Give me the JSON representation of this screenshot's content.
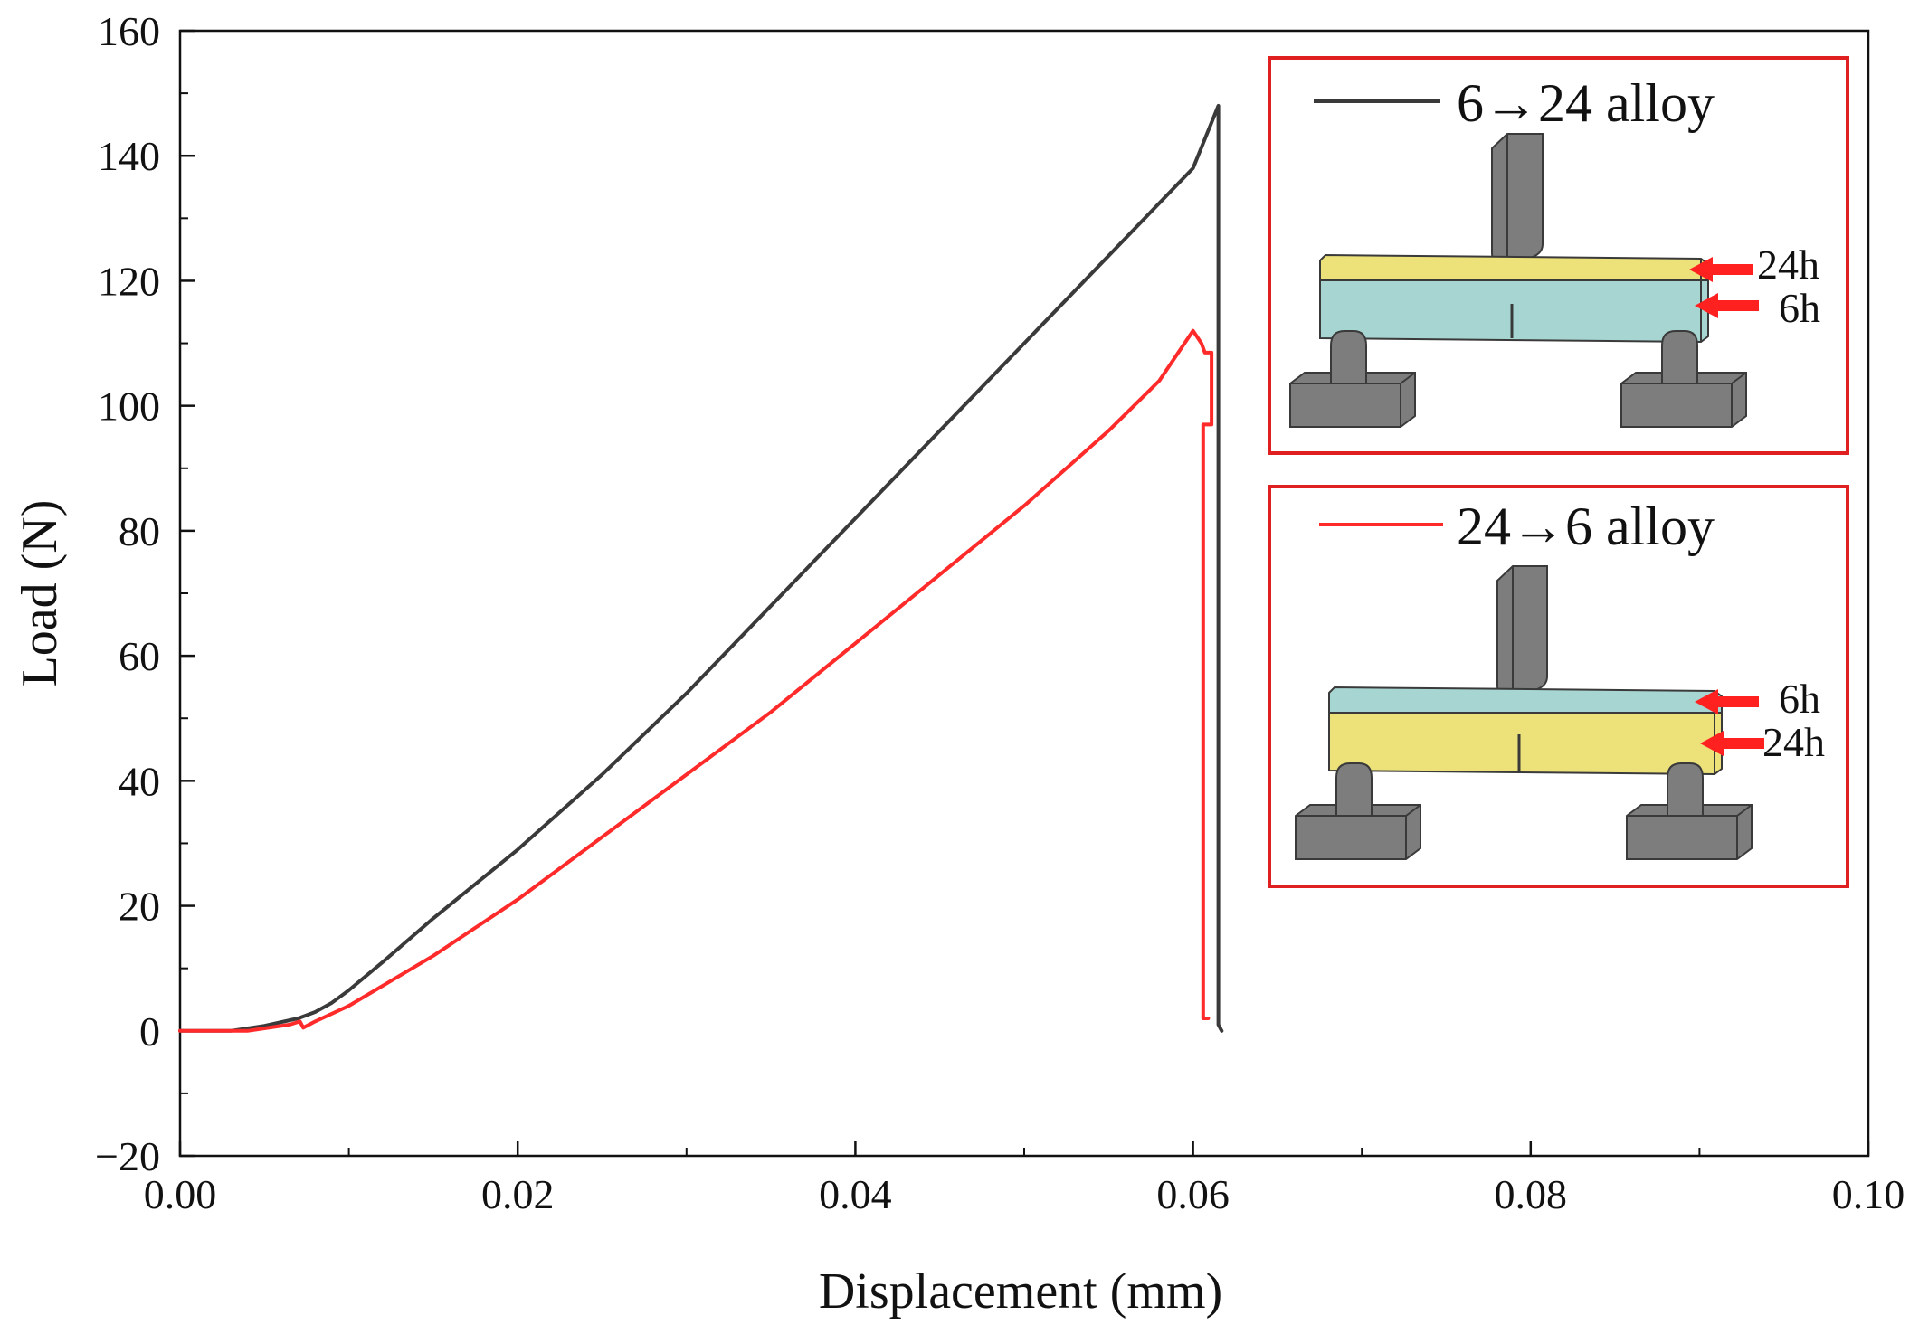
{
  "chart_data": {
    "type": "line",
    "title": "",
    "xlabel": "Displacement (mm)",
    "ylabel": "Load (N)",
    "xlim": [
      0.0,
      0.1
    ],
    "ylim": [
      -20,
      160
    ],
    "xticks": [
      0.0,
      0.02,
      0.04,
      0.06,
      0.08,
      0.1
    ],
    "xtick_labels": [
      "0.00",
      "0.02",
      "0.04",
      "0.06",
      "0.08",
      "0.10"
    ],
    "yticks": [
      -20,
      0,
      20,
      40,
      60,
      80,
      100,
      120,
      140,
      160
    ],
    "ytick_labels": [
      "−20",
      "0",
      "20",
      "40",
      "60",
      "80",
      "100",
      "120",
      "140",
      "160"
    ],
    "grid": false,
    "series": [
      {
        "name": "6→24 alloy",
        "color": "#3a3a3a",
        "x": [
          0.0,
          0.003,
          0.005,
          0.007,
          0.008,
          0.009,
          0.01,
          0.012,
          0.015,
          0.02,
          0.025,
          0.03,
          0.035,
          0.04,
          0.045,
          0.05,
          0.055,
          0.06,
          0.0615,
          0.0615,
          0.0617
        ],
        "y": [
          0,
          0,
          0.8,
          2,
          3,
          4.5,
          6.5,
          11,
          18,
          29,
          41,
          54,
          68,
          82,
          96,
          110,
          124,
          138,
          148,
          1,
          0
        ]
      },
      {
        "name": "24→6 alloy",
        "color": "#ff2a2a",
        "x": [
          0.0,
          0.004,
          0.0065,
          0.0071,
          0.0073,
          0.008,
          0.01,
          0.015,
          0.02,
          0.025,
          0.03,
          0.035,
          0.04,
          0.045,
          0.05,
          0.055,
          0.058,
          0.06,
          0.0605,
          0.0607,
          0.0611,
          0.0611,
          0.0606,
          0.0606,
          0.0609,
          0.0609
        ],
        "y": [
          0,
          0,
          1,
          1.5,
          0.5,
          1.5,
          4,
          12,
          21,
          31,
          41,
          51,
          62,
          73,
          84,
          96,
          104,
          112,
          110,
          108.5,
          108.5,
          97,
          97,
          2,
          2,
          2
        ]
      }
    ],
    "legend": {
      "placement": "top-right",
      "entries": [
        {
          "label": "6→24 alloy",
          "top_layer": "24h",
          "bottom_layer": "6h",
          "top_color": "#ede27a",
          "bottom_color": "#a7d5d1"
        },
        {
          "label": "24→6 alloy",
          "top_layer": "6h",
          "bottom_layer": "24h",
          "top_color": "#a7d5d1",
          "bottom_color": "#ede27a"
        }
      ],
      "frame_color": "#e02020"
    },
    "fixture_color": "#7d7d7d"
  }
}
